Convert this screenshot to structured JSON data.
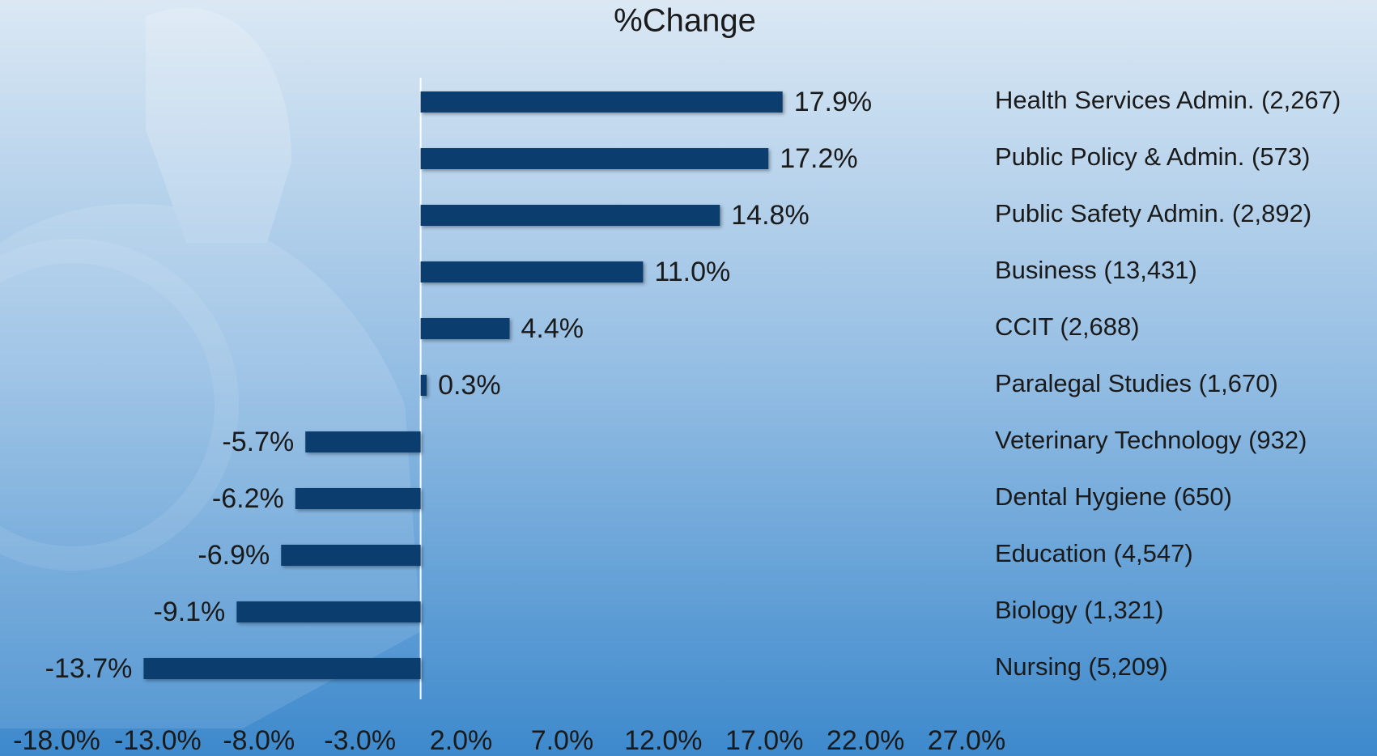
{
  "chart_data": {
    "type": "barh",
    "title": "%Change",
    "categories": [
      "Health Services Admin. (2,267)",
      "Public Policy & Admin. (573)",
      "Public Safety Admin. (2,892)",
      "Business (13,431)",
      "CCIT (2,688)",
      "Paralegal Studies (1,670)",
      "Veterinary Technology (932)",
      "Dental Hygiene (650)",
      "Education (4,547)",
      "Biology (1,321)",
      "Nursing (5,209)"
    ],
    "values": [
      17.9,
      17.2,
      14.8,
      11.0,
      4.4,
      0.3,
      -5.7,
      -6.2,
      -6.9,
      -9.1,
      -13.7
    ],
    "value_labels": [
      "17.9%",
      "17.2%",
      "14.8%",
      "11.0%",
      "4.4%",
      "0.3%",
      "-5.7%",
      "-6.2%",
      "-6.9%",
      "-9.1%",
      "-13.7%"
    ],
    "color": "#0b3d6e",
    "xlim": [
      -18,
      27
    ],
    "xticks": [
      {
        "value": -18,
        "label": "-18.0%"
      },
      {
        "value": -13,
        "label": "-13.0%"
      },
      {
        "value": -8,
        "label": "-8.0%"
      },
      {
        "value": -3,
        "label": "-3.0%"
      },
      {
        "value": 2,
        "label": "2.0%"
      },
      {
        "value": 7,
        "label": "7.0%"
      },
      {
        "value": 12,
        "label": "12.0%"
      },
      {
        "value": 17,
        "label": "17.0%"
      },
      {
        "value": 22,
        "label": "22.0%"
      },
      {
        "value": 27,
        "label": "27.0%"
      }
    ],
    "grid": false
  }
}
